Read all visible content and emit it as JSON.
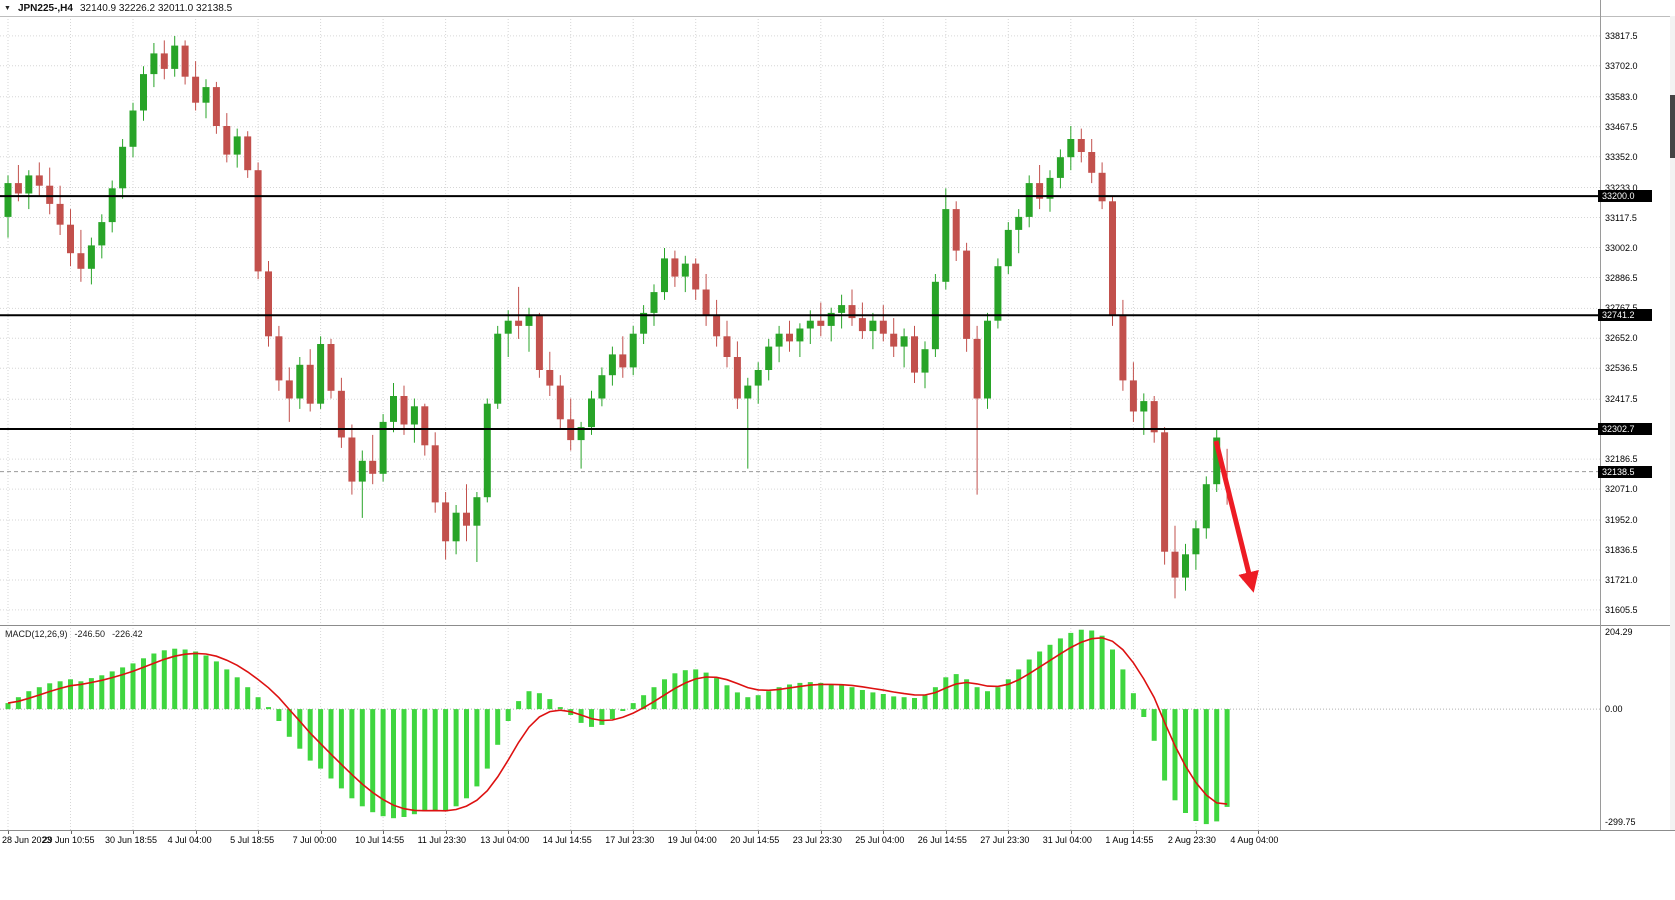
{
  "window": {
    "symbol_period": "JPN225-,H4",
    "ohlc_readout": "32140.9 32226.2 32011.0 32138.5",
    "dropdown_icon": "▼"
  },
  "macd_panel": {
    "name": "MACD(12,26,9)",
    "value_main": "-246.50",
    "value_signal": "-226.42"
  },
  "annotations": {
    "trend_arrow": {
      "from": [
        1216,
        441
      ],
      "to": [
        1252,
        586
      ]
    }
  },
  "colors": {
    "background": "#ffffff",
    "bull": "#28a428",
    "bear": "#c2504c",
    "macd_hist": "#3fd63f",
    "macd_signal": "#dd1111",
    "grid": "#d6d6d6",
    "level_line": "#000000",
    "arrow": "#ed1c24",
    "badge_bg": "#000000",
    "badge_text": "#ffffff",
    "axis_text": "#000000"
  },
  "chart_data": [
    {
      "type": "candlestick",
      "title": "JPN225- H4",
      "timeframe": "H4",
      "ylim": [
        31559,
        33894
      ],
      "grid": true,
      "y_tick_values": [
        33817.5,
        33702.0,
        33583.0,
        33467.5,
        33352.0,
        33233.0,
        33117.5,
        33002.0,
        32886.5,
        32767.5,
        32652.0,
        32536.5,
        32417.5,
        32186.5,
        32071.0,
        31952.0,
        31836.5,
        31721.0,
        31605.5
      ],
      "levels": [
        33200.0,
        32741.2,
        32302.7
      ],
      "current_price": 32138.5,
      "x_ticks_every": 6,
      "x_tick_labels": [
        "28 Jun 2023",
        "29 Jun 10:55",
        "30 Jun 18:55",
        "4 Jul 04:00",
        "5 Jul 18:55",
        "7 Jul 00:00",
        "10 Jul 14:55",
        "11 Jul 23:30",
        "13 Jul 04:00",
        "14 Jul 14:55",
        "17 Jul 23:30",
        "19 Jul 04:00",
        "20 Jul 14:55",
        "23 Jul 23:30",
        "25 Jul 04:00",
        "26 Jul 14:55",
        "27 Jul 23:30",
        "31 Jul 04:00",
        "1 Aug 14:55",
        "2 Aug 23:30",
        "4 Aug 04:00"
      ],
      "candles": [
        [
          33120,
          33280,
          33040,
          33250
        ],
        [
          33250,
          33320,
          33180,
          33210
        ],
        [
          33210,
          33300,
          33150,
          33280
        ],
        [
          33280,
          33330,
          33200,
          33240
        ],
        [
          33240,
          33310,
          33130,
          33170
        ],
        [
          33170,
          33240,
          33050,
          33090
        ],
        [
          33090,
          33150,
          32930,
          32980
        ],
        [
          32980,
          33070,
          32870,
          32920
        ],
        [
          32920,
          33040,
          32860,
          33010
        ],
        [
          33010,
          33130,
          32960,
          33100
        ],
        [
          33100,
          33260,
          33060,
          33230
        ],
        [
          33230,
          33420,
          33190,
          33390
        ],
        [
          33390,
          33560,
          33350,
          33530
        ],
        [
          33530,
          33700,
          33490,
          33670
        ],
        [
          33670,
          33790,
          33620,
          33750
        ],
        [
          33750,
          33800,
          33650,
          33690
        ],
        [
          33690,
          33817,
          33660,
          33780
        ],
        [
          33780,
          33800,
          33630,
          33660
        ],
        [
          33660,
          33720,
          33530,
          33560
        ],
        [
          33560,
          33650,
          33500,
          33620
        ],
        [
          33620,
          33640,
          33440,
          33470
        ],
        [
          33470,
          33520,
          33330,
          33360
        ],
        [
          33360,
          33460,
          33310,
          33430
        ],
        [
          33430,
          33450,
          33270,
          33300
        ],
        [
          33300,
          33330,
          32880,
          32910
        ],
        [
          32910,
          32950,
          32620,
          32660
        ],
        [
          32660,
          32700,
          32450,
          32490
        ],
        [
          32490,
          32540,
          32330,
          32420
        ],
        [
          32420,
          32580,
          32380,
          32550
        ],
        [
          32550,
          32610,
          32370,
          32400
        ],
        [
          32400,
          32660,
          32380,
          32630
        ],
        [
          32630,
          32650,
          32420,
          32450
        ],
        [
          32450,
          32500,
          32230,
          32270
        ],
        [
          32270,
          32320,
          32050,
          32100
        ],
        [
          32100,
          32220,
          31960,
          32180
        ],
        [
          32180,
          32280,
          32090,
          32130
        ],
        [
          32130,
          32360,
          32100,
          32330
        ],
        [
          32330,
          32480,
          32290,
          32430
        ],
        [
          32430,
          32470,
          32280,
          32320
        ],
        [
          32320,
          32420,
          32250,
          32390
        ],
        [
          32390,
          32400,
          32200,
          32240
        ],
        [
          32240,
          32290,
          31980,
          32020
        ],
        [
          32020,
          32060,
          31800,
          31870
        ],
        [
          31870,
          32010,
          31820,
          31980
        ],
        [
          31980,
          32090,
          31870,
          31930
        ],
        [
          31930,
          32060,
          31790,
          32040
        ],
        [
          32040,
          32420,
          32020,
          32400
        ],
        [
          32400,
          32700,
          32380,
          32670
        ],
        [
          32670,
          32760,
          32580,
          32720
        ],
        [
          32720,
          32850,
          32650,
          32700
        ],
        [
          32700,
          32770,
          32600,
          32740
        ],
        [
          32740,
          32750,
          32500,
          32530
        ],
        [
          32530,
          32600,
          32430,
          32470
        ],
        [
          32470,
          32510,
          32300,
          32340
        ],
        [
          32340,
          32420,
          32220,
          32260
        ],
        [
          32260,
          32330,
          32150,
          32310
        ],
        [
          32310,
          32450,
          32280,
          32420
        ],
        [
          32420,
          32540,
          32390,
          32510
        ],
        [
          32510,
          32620,
          32470,
          32590
        ],
        [
          32590,
          32660,
          32500,
          32540
        ],
        [
          32540,
          32700,
          32510,
          32670
        ],
        [
          32670,
          32780,
          32630,
          32750
        ],
        [
          32750,
          32860,
          32700,
          32830
        ],
        [
          32830,
          33000,
          32800,
          32960
        ],
        [
          32960,
          32990,
          32850,
          32890
        ],
        [
          32890,
          32970,
          32830,
          32940
        ],
        [
          32940,
          32960,
          32800,
          32840
        ],
        [
          32840,
          32900,
          32700,
          32740
        ],
        [
          32740,
          32800,
          32620,
          32660
        ],
        [
          32660,
          32720,
          32540,
          32580
        ],
        [
          32580,
          32640,
          32380,
          32420
        ],
        [
          32420,
          32500,
          32150,
          32470
        ],
        [
          32470,
          32560,
          32400,
          32530
        ],
        [
          32530,
          32650,
          32490,
          32620
        ],
        [
          32620,
          32700,
          32560,
          32670
        ],
        [
          32670,
          32720,
          32600,
          32640
        ],
        [
          32640,
          32710,
          32580,
          32690
        ],
        [
          32690,
          32760,
          32630,
          32720
        ],
        [
          32720,
          32790,
          32660,
          32700
        ],
        [
          32700,
          32770,
          32640,
          32750
        ],
        [
          32750,
          32820,
          32690,
          32780
        ],
        [
          32780,
          32840,
          32700,
          32730
        ],
        [
          32730,
          32790,
          32650,
          32680
        ],
        [
          32680,
          32750,
          32610,
          32720
        ],
        [
          32720,
          32780,
          32640,
          32670
        ],
        [
          32670,
          32730,
          32580,
          32620
        ],
        [
          32620,
          32690,
          32540,
          32660
        ],
        [
          32660,
          32700,
          32480,
          32520
        ],
        [
          32520,
          32640,
          32460,
          32610
        ],
        [
          32610,
          32900,
          32580,
          32870
        ],
        [
          32870,
          33230,
          32840,
          33150
        ],
        [
          33150,
          33180,
          32950,
          32990
        ],
        [
          32990,
          33020,
          32600,
          32650
        ],
        [
          32650,
          32700,
          32050,
          32420
        ],
        [
          32420,
          32750,
          32380,
          32720
        ],
        [
          32720,
          32960,
          32690,
          32930
        ],
        [
          32930,
          33100,
          32900,
          33070
        ],
        [
          33070,
          33150,
          32980,
          33120
        ],
        [
          33120,
          33280,
          33080,
          33250
        ],
        [
          33250,
          33320,
          33150,
          33190
        ],
        [
          33190,
          33300,
          33140,
          33270
        ],
        [
          33270,
          33380,
          33230,
          33350
        ],
        [
          33350,
          33470,
          33300,
          33420
        ],
        [
          33420,
          33460,
          33330,
          33370
        ],
        [
          33370,
          33420,
          33250,
          33290
        ],
        [
          33290,
          33330,
          33150,
          33180
        ],
        [
          33180,
          33200,
          32700,
          32740
        ],
        [
          32740,
          32800,
          32450,
          32490
        ],
        [
          32490,
          32560,
          32330,
          32370
        ],
        [
          32370,
          32440,
          32280,
          32410
        ],
        [
          32410,
          32430,
          32250,
          32290
        ],
        [
          32290,
          32310,
          31780,
          31830
        ],
        [
          31830,
          31930,
          31650,
          31730
        ],
        [
          31730,
          31860,
          31680,
          31820
        ],
        [
          31820,
          31950,
          31760,
          31920
        ],
        [
          31920,
          32120,
          31880,
          32090
        ],
        [
          32090,
          32300,
          32060,
          32270
        ],
        [
          32140.9,
          32226.2,
          32011.0,
          32138.5
        ]
      ]
    },
    {
      "type": "bar",
      "title": "MACD(12,26,9)",
      "ylim": [
        -299.75,
        204.29
      ],
      "y_ticks": [
        {
          "v": 204.29,
          "t": "204.29"
        },
        {
          "v": 0,
          "t": "0.00"
        },
        {
          "v": -299.75,
          "t": "-299.75"
        }
      ],
      "signal_smoothing": "ema",
      "values": [
        15,
        30,
        45,
        55,
        65,
        70,
        75,
        70,
        78,
        85,
        95,
        105,
        115,
        128,
        140,
        148,
        152,
        150,
        145,
        135,
        120,
        100,
        80,
        55,
        30,
        5,
        -30,
        -70,
        -100,
        -130,
        -150,
        -175,
        -200,
        -225,
        -245,
        -260,
        -270,
        -275,
        -272,
        -265,
        -258,
        -255,
        -258,
        -245,
        -225,
        -195,
        -150,
        -90,
        -30,
        20,
        45,
        40,
        25,
        5,
        -15,
        -35,
        -45,
        -40,
        -25,
        -5,
        15,
        35,
        55,
        75,
        90,
        98,
        100,
        92,
        78,
        60,
        42,
        30,
        35,
        45,
        55,
        62,
        66,
        68,
        66,
        62,
        60,
        55,
        48,
        42,
        38,
        32,
        30,
        28,
        35,
        55,
        80,
        88,
        75,
        55,
        45,
        55,
        75,
        100,
        125,
        145,
        162,
        178,
        192,
        200,
        198,
        185,
        150,
        100,
        40,
        -20,
        -80,
        -180,
        -230,
        -262,
        -282,
        -290,
        -283,
        -246.5
      ]
    }
  ]
}
